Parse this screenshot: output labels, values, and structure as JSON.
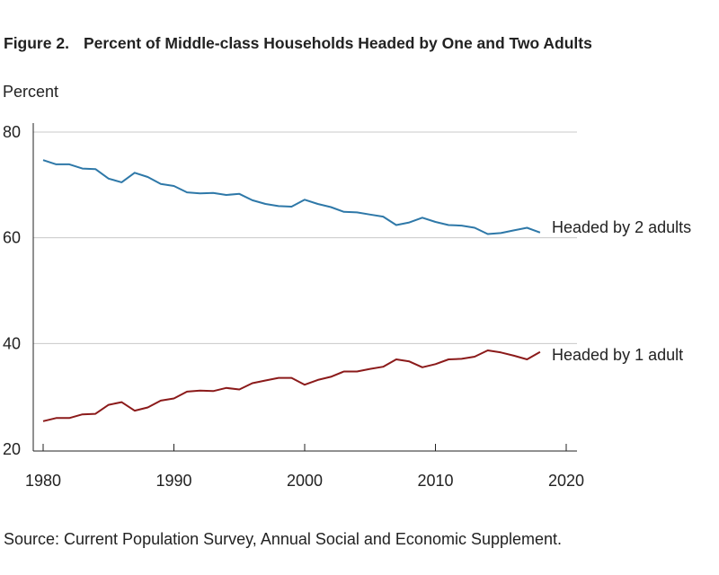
{
  "figure": {
    "number": "Figure 2.",
    "title": "Percent of Middle-class Households Headed by One and Two Adults",
    "source": "Source: Current Population Survey, Annual Social and Economic Supplement."
  },
  "chart_data": {
    "type": "line",
    "title": "Percent of Middle-class Households Headed by One and Two Adults",
    "ylabel": "Percent",
    "xlabel": "",
    "ylim": [
      20,
      80
    ],
    "xlim": [
      1979.7,
      2020.7
    ],
    "y_ticks": [
      20,
      40,
      60,
      80
    ],
    "x_ticks": [
      1980,
      1990,
      2000,
      2010,
      2020
    ],
    "grid": "horizontal",
    "legend": "direct-labels-right",
    "x": [
      1980,
      1981,
      1982,
      1983,
      1984,
      1985,
      1986,
      1987,
      1988,
      1989,
      1990,
      1991,
      1992,
      1993,
      1994,
      1995,
      1996,
      1997,
      1998,
      1999,
      2000,
      2001,
      2002,
      2003,
      2004,
      2005,
      2006,
      2007,
      2008,
      2009,
      2010,
      2011,
      2012,
      2013,
      2014,
      2015,
      2016,
      2017,
      2018
    ],
    "series": [
      {
        "name": "Headed by 2 adults",
        "color": "#2e78a8",
        "values": [
          74.7,
          73.9,
          73.9,
          73.1,
          73.0,
          71.2,
          70.5,
          72.3,
          71.5,
          70.2,
          69.8,
          68.6,
          68.4,
          68.5,
          68.1,
          68.3,
          67.1,
          66.4,
          66.0,
          65.9,
          67.2,
          66.4,
          65.8,
          64.9,
          64.8,
          64.4,
          64.0,
          62.4,
          62.9,
          63.8,
          63.0,
          62.4,
          62.3,
          61.9,
          60.7,
          60.9,
          61.4,
          61.9,
          61.0
        ]
      },
      {
        "name": "Headed by 1 adult",
        "color": "#8b1a1a",
        "values": [
          25.3,
          25.9,
          25.9,
          26.6,
          26.7,
          28.4,
          28.9,
          27.3,
          27.9,
          29.2,
          29.6,
          30.9,
          31.1,
          31.0,
          31.6,
          31.3,
          32.5,
          33.0,
          33.5,
          33.5,
          32.2,
          33.1,
          33.7,
          34.7,
          34.7,
          35.2,
          35.6,
          37.0,
          36.6,
          35.5,
          36.1,
          37.0,
          37.1,
          37.5,
          38.7,
          38.3,
          37.7,
          37.0,
          38.4
        ]
      }
    ]
  }
}
